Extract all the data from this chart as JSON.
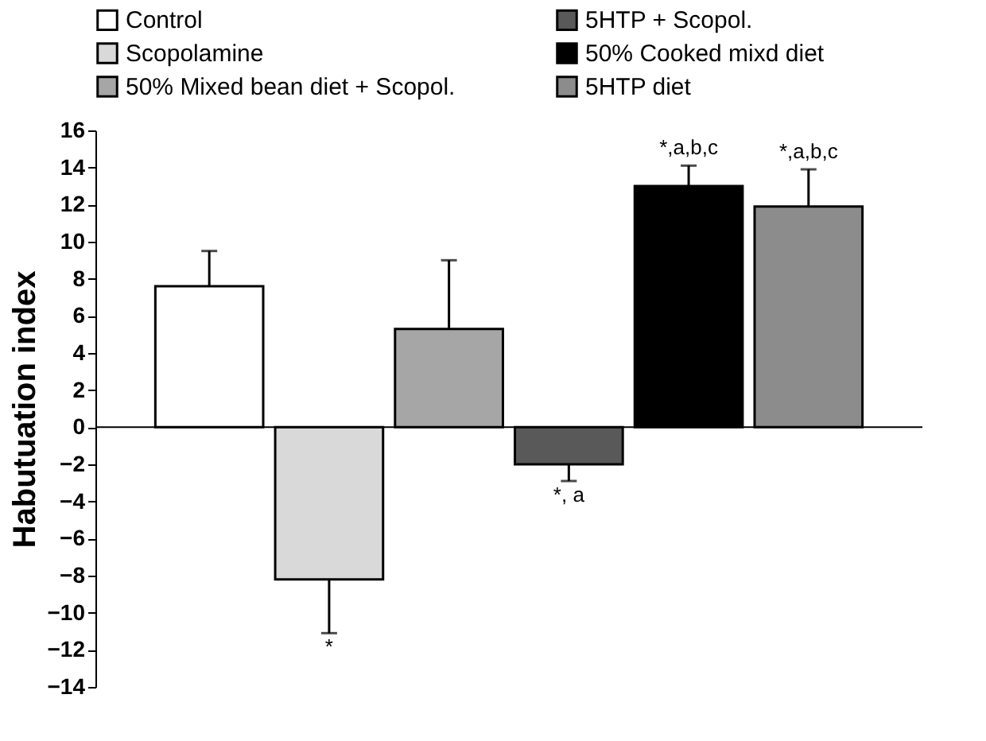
{
  "chart_data": {
    "type": "bar",
    "ylabel": "Habutuation index",
    "categories": [
      null,
      null,
      null,
      null,
      null,
      null
    ],
    "series": [
      {
        "name": "Control",
        "color": "#ffffff",
        "values": [
          7.6,
          null,
          null,
          null,
          null,
          null
        ],
        "errors": [
          [
            7.6,
            9.5
          ],
          null,
          null,
          null,
          null,
          null
        ]
      },
      {
        "name": "Scopolamine",
        "color": "#d9d9d9",
        "values": [
          null,
          -8.2,
          null,
          null,
          null,
          null
        ],
        "errors": [
          null,
          [
            -11.1,
            -8.2
          ],
          null,
          null,
          null,
          null
        ]
      },
      {
        "name": "50% Mixed bean diet + Scopol.",
        "color": "#a6a6a6",
        "values": [
          null,
          null,
          5.3,
          null,
          null,
          null
        ],
        "errors": [
          null,
          null,
          [
            5.3,
            9.0
          ],
          null,
          null,
          null
        ]
      },
      {
        "name": "5HTP + Scopol.",
        "color": "#595959",
        "values": [
          null,
          null,
          null,
          -2.0,
          null,
          null
        ],
        "errors": [
          null,
          null,
          null,
          [
            -2.9,
            -2.0
          ],
          null,
          null
        ]
      },
      {
        "name": "50% Cooked mixd diet",
        "color": "#000000",
        "values": [
          null,
          null,
          null,
          null,
          13.0,
          null
        ],
        "errors": [
          null,
          null,
          null,
          null,
          [
            13.0,
            14.1
          ],
          null
        ]
      },
      {
        "name": "5HTP diet",
        "color": "#8c8c8c",
        "values": [
          null,
          null,
          null,
          null,
          null,
          11.9
        ],
        "errors": [
          null,
          null,
          null,
          null,
          null,
          [
            11.9,
            13.9
          ]
        ]
      }
    ],
    "annotations": [
      "*",
      "*, a",
      "*,a,b,c",
      "*,a,b,c"
    ],
    "ylim": [
      -14,
      16
    ],
    "yticks": [
      -14,
      -12,
      -10,
      -8,
      -6,
      -4,
      -2,
      0,
      2,
      4,
      6,
      8,
      10,
      12,
      14,
      16
    ],
    "ref_lines": [
      {
        "axis": "y",
        "value": 0,
        "color": "#000000",
        "line_style": "solid"
      }
    ],
    "grid": false,
    "legend": "top"
  }
}
